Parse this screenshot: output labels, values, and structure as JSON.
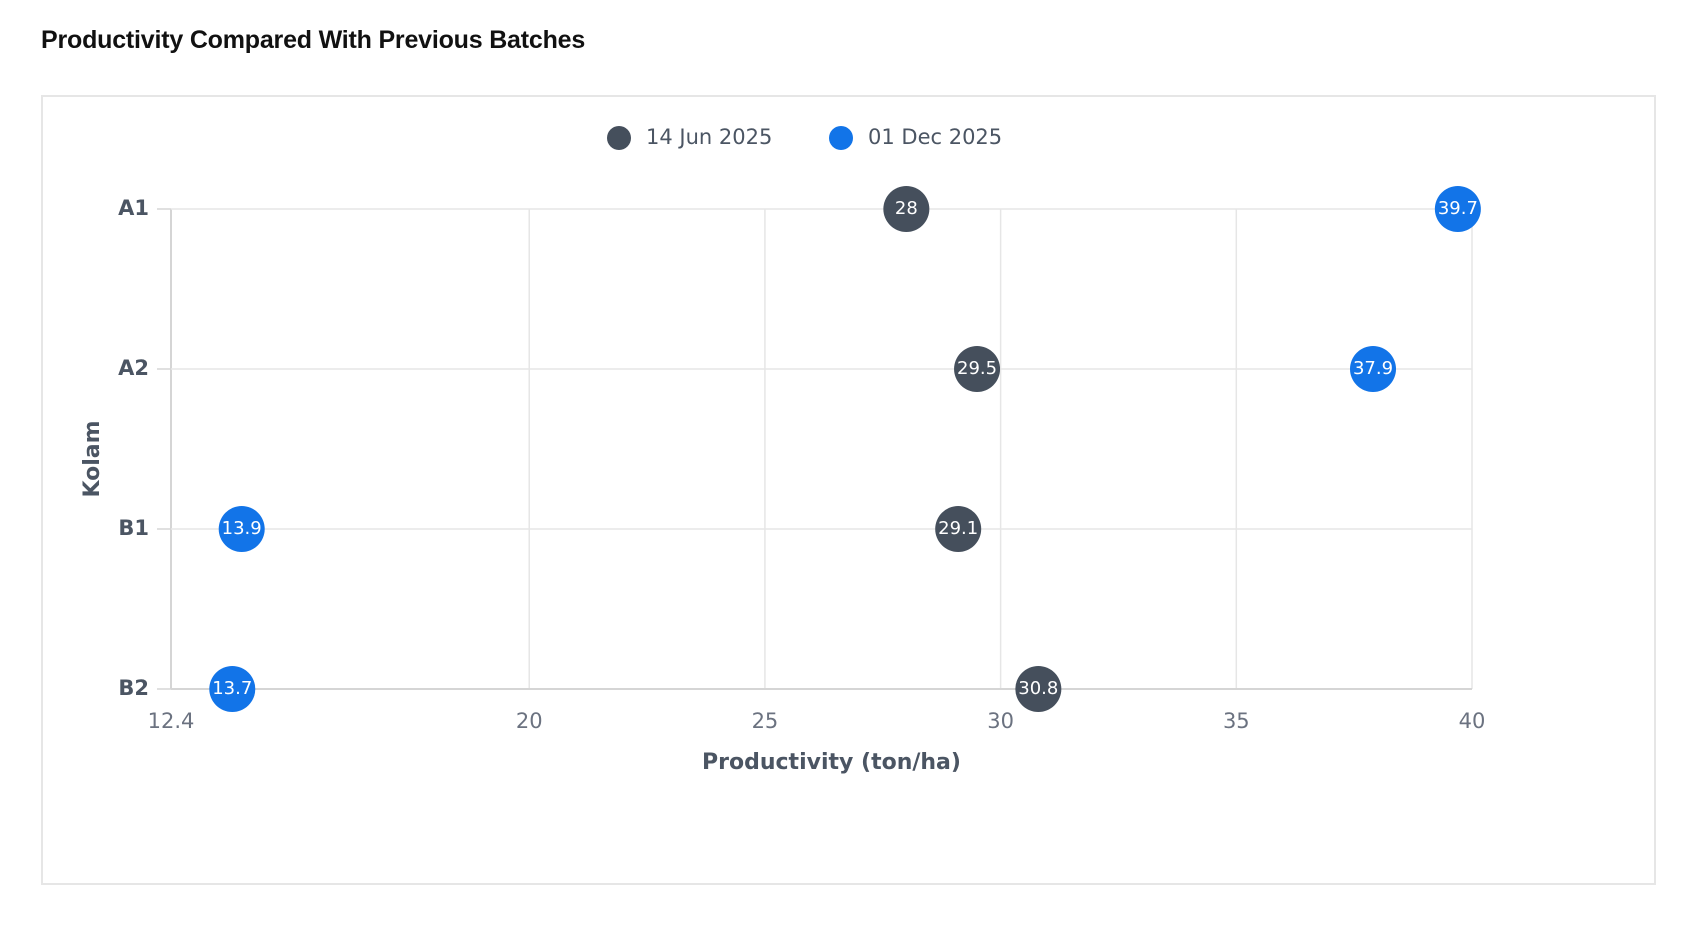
{
  "page": {
    "title": "Productivity Compared With Previous Batches"
  },
  "chart_data": {
    "type": "scatter",
    "title": "Productivity Compared With Previous Batches",
    "xlabel": "Productivity (ton/ha)",
    "ylabel": "Kolam",
    "xlim": [
      12.4,
      40
    ],
    "x_ticks": [
      {
        "value": 12.4,
        "label": "12.4"
      },
      {
        "value": 20,
        "label": "20"
      },
      {
        "value": 25,
        "label": "25"
      },
      {
        "value": 30,
        "label": "30"
      },
      {
        "value": 35,
        "label": "35"
      },
      {
        "value": 40,
        "label": "40"
      }
    ],
    "categories": [
      "A1",
      "A2",
      "B1",
      "B2"
    ],
    "grid": true,
    "legend_position": "top-center",
    "series": [
      {
        "name": "14 Jun 2025",
        "color": "#454f5c",
        "points": [
          {
            "category": "A1",
            "value": 28,
            "label": "28"
          },
          {
            "category": "A2",
            "value": 29.5,
            "label": "29.5"
          },
          {
            "category": "B1",
            "value": 29.1,
            "label": "29.1"
          },
          {
            "category": "B2",
            "value": 30.8,
            "label": "30.8"
          }
        ]
      },
      {
        "name": "01 Dec 2025",
        "color": "#1274e8",
        "points": [
          {
            "category": "A1",
            "value": 39.7,
            "label": "39.7"
          },
          {
            "category": "A2",
            "value": 37.9,
            "label": "37.9"
          },
          {
            "category": "B1",
            "value": 13.9,
            "label": "13.9"
          },
          {
            "category": "B2",
            "value": 13.7,
            "label": "13.7"
          }
        ]
      }
    ]
  }
}
